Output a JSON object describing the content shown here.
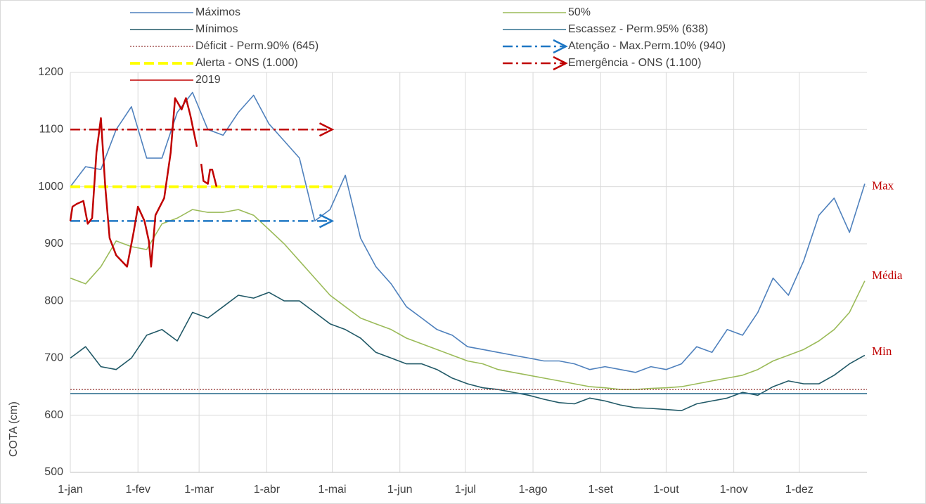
{
  "chart_data": {
    "type": "line",
    "y_label": "COTA (cm)",
    "xlim": [
      0,
      365
    ],
    "xticks": [
      {
        "value": 0,
        "label": "1-jan"
      },
      {
        "value": 31,
        "label": "1-fev"
      },
      {
        "value": 59,
        "label": "1-mar"
      },
      {
        "value": 90,
        "label": "1-abr"
      },
      {
        "value": 120,
        "label": "1-mai"
      },
      {
        "value": 151,
        "label": "1-jun"
      },
      {
        "value": 181,
        "label": "1-jul"
      },
      {
        "value": 212,
        "label": "1-ago"
      },
      {
        "value": 243,
        "label": "1-set"
      },
      {
        "value": 273,
        "label": "1-out"
      },
      {
        "value": 304,
        "label": "1-nov"
      },
      {
        "value": 334,
        "label": "1-dez"
      }
    ],
    "ylim": [
      500,
      1200
    ],
    "yticks": [
      500,
      600,
      700,
      800,
      900,
      1000,
      1100,
      1200
    ],
    "grid": true,
    "x": [
      0,
      7,
      14,
      21,
      28,
      35,
      42,
      49,
      56,
      63,
      70,
      77,
      84,
      91,
      98,
      105,
      112,
      119,
      126,
      133,
      140,
      147,
      154,
      161,
      168,
      175,
      182,
      189,
      196,
      203,
      210,
      217,
      224,
      231,
      238,
      245,
      252,
      259,
      266,
      273,
      280,
      287,
      294,
      301,
      308,
      315,
      322,
      329,
      336,
      343,
      350,
      357,
      364
    ],
    "series": [
      {
        "name": "Máximos",
        "color": "#4f81bd",
        "values": [
          1000,
          1035,
          1030,
          1100,
          1140,
          1050,
          1050,
          1130,
          1165,
          1100,
          1090,
          1130,
          1160,
          1110,
          1080,
          1050,
          940,
          960,
          1020,
          910,
          860,
          830,
          790,
          770,
          750,
          740,
          720,
          715,
          710,
          705,
          700,
          695,
          695,
          690,
          680,
          685,
          680,
          675,
          685,
          680,
          690,
          720,
          710,
          750,
          740,
          780,
          840,
          810,
          870,
          950,
          980,
          920,
          1005
        ]
      },
      {
        "name": "50%",
        "color": "#9bbb59",
        "values": [
          840,
          830,
          860,
          905,
          895,
          890,
          935,
          945,
          960,
          955,
          955,
          960,
          950,
          925,
          900,
          870,
          840,
          810,
          790,
          770,
          760,
          750,
          735,
          725,
          715,
          705,
          695,
          690,
          680,
          675,
          670,
          665,
          660,
          655,
          650,
          648,
          645,
          645,
          647,
          648,
          650,
          655,
          660,
          665,
          670,
          680,
          695,
          705,
          715,
          730,
          750,
          780,
          835
        ]
      },
      {
        "name": "Mínimos",
        "color": "#215967",
        "values": [
          700,
          720,
          685,
          680,
          700,
          740,
          750,
          730,
          780,
          770,
          790,
          810,
          805,
          815,
          800,
          800,
          780,
          760,
          750,
          735,
          710,
          700,
          690,
          690,
          680,
          665,
          655,
          648,
          645,
          640,
          635,
          628,
          622,
          620,
          630,
          625,
          618,
          613,
          612,
          610,
          608,
          620,
          625,
          630,
          640,
          635,
          650,
          660,
          655,
          655,
          670,
          690,
          705
        ]
      },
      {
        "name": "Escassez - Perm.95% (638)",
        "color": "#31708f",
        "y": 638,
        "x_end": 365,
        "dash": "solid"
      },
      {
        "name": "Déficit - Perm.90% (645)",
        "color": "#943634",
        "y": 645,
        "x_end": 365,
        "dash": "dotted"
      },
      {
        "name": "Atenção - Max.Perm.10% (940)",
        "color": "#1f77c4",
        "y": 940,
        "x_end": 120,
        "dash": "dashdot",
        "arrow": true
      },
      {
        "name": "Alerta - ONS (1.000)",
        "color": "#ffff00",
        "y": 1000,
        "x_end": 120,
        "dash": "dash"
      },
      {
        "name": "Emergência - ONS (1.100)",
        "color": "#c00000",
        "y": 1100,
        "x_end": 120,
        "dash": "dashdot",
        "arrow": true
      },
      {
        "name": "2019",
        "color": "#c00000",
        "x": [
          0,
          1,
          3,
          6,
          8,
          10,
          12,
          14,
          16,
          18,
          21,
          26,
          29,
          31,
          34,
          36,
          37,
          39,
          43,
          46,
          48,
          51,
          53,
          55,
          58,
          59,
          60,
          61,
          63,
          64,
          65,
          67
        ],
        "values": [
          940,
          965,
          970,
          975,
          935,
          945,
          1060,
          1120,
          1000,
          910,
          880,
          860,
          920,
          965,
          940,
          905,
          860,
          950,
          980,
          1060,
          1155,
          1135,
          1155,
          1125,
          1070,
          null,
          1040,
          1010,
          1005,
          1030,
          1030,
          1000
        ]
      }
    ],
    "annotations": [
      {
        "text": "Max",
        "y": 1000
      },
      {
        "text": "Média",
        "y": 843
      },
      {
        "text": "Min",
        "y": 710
      }
    ]
  }
}
